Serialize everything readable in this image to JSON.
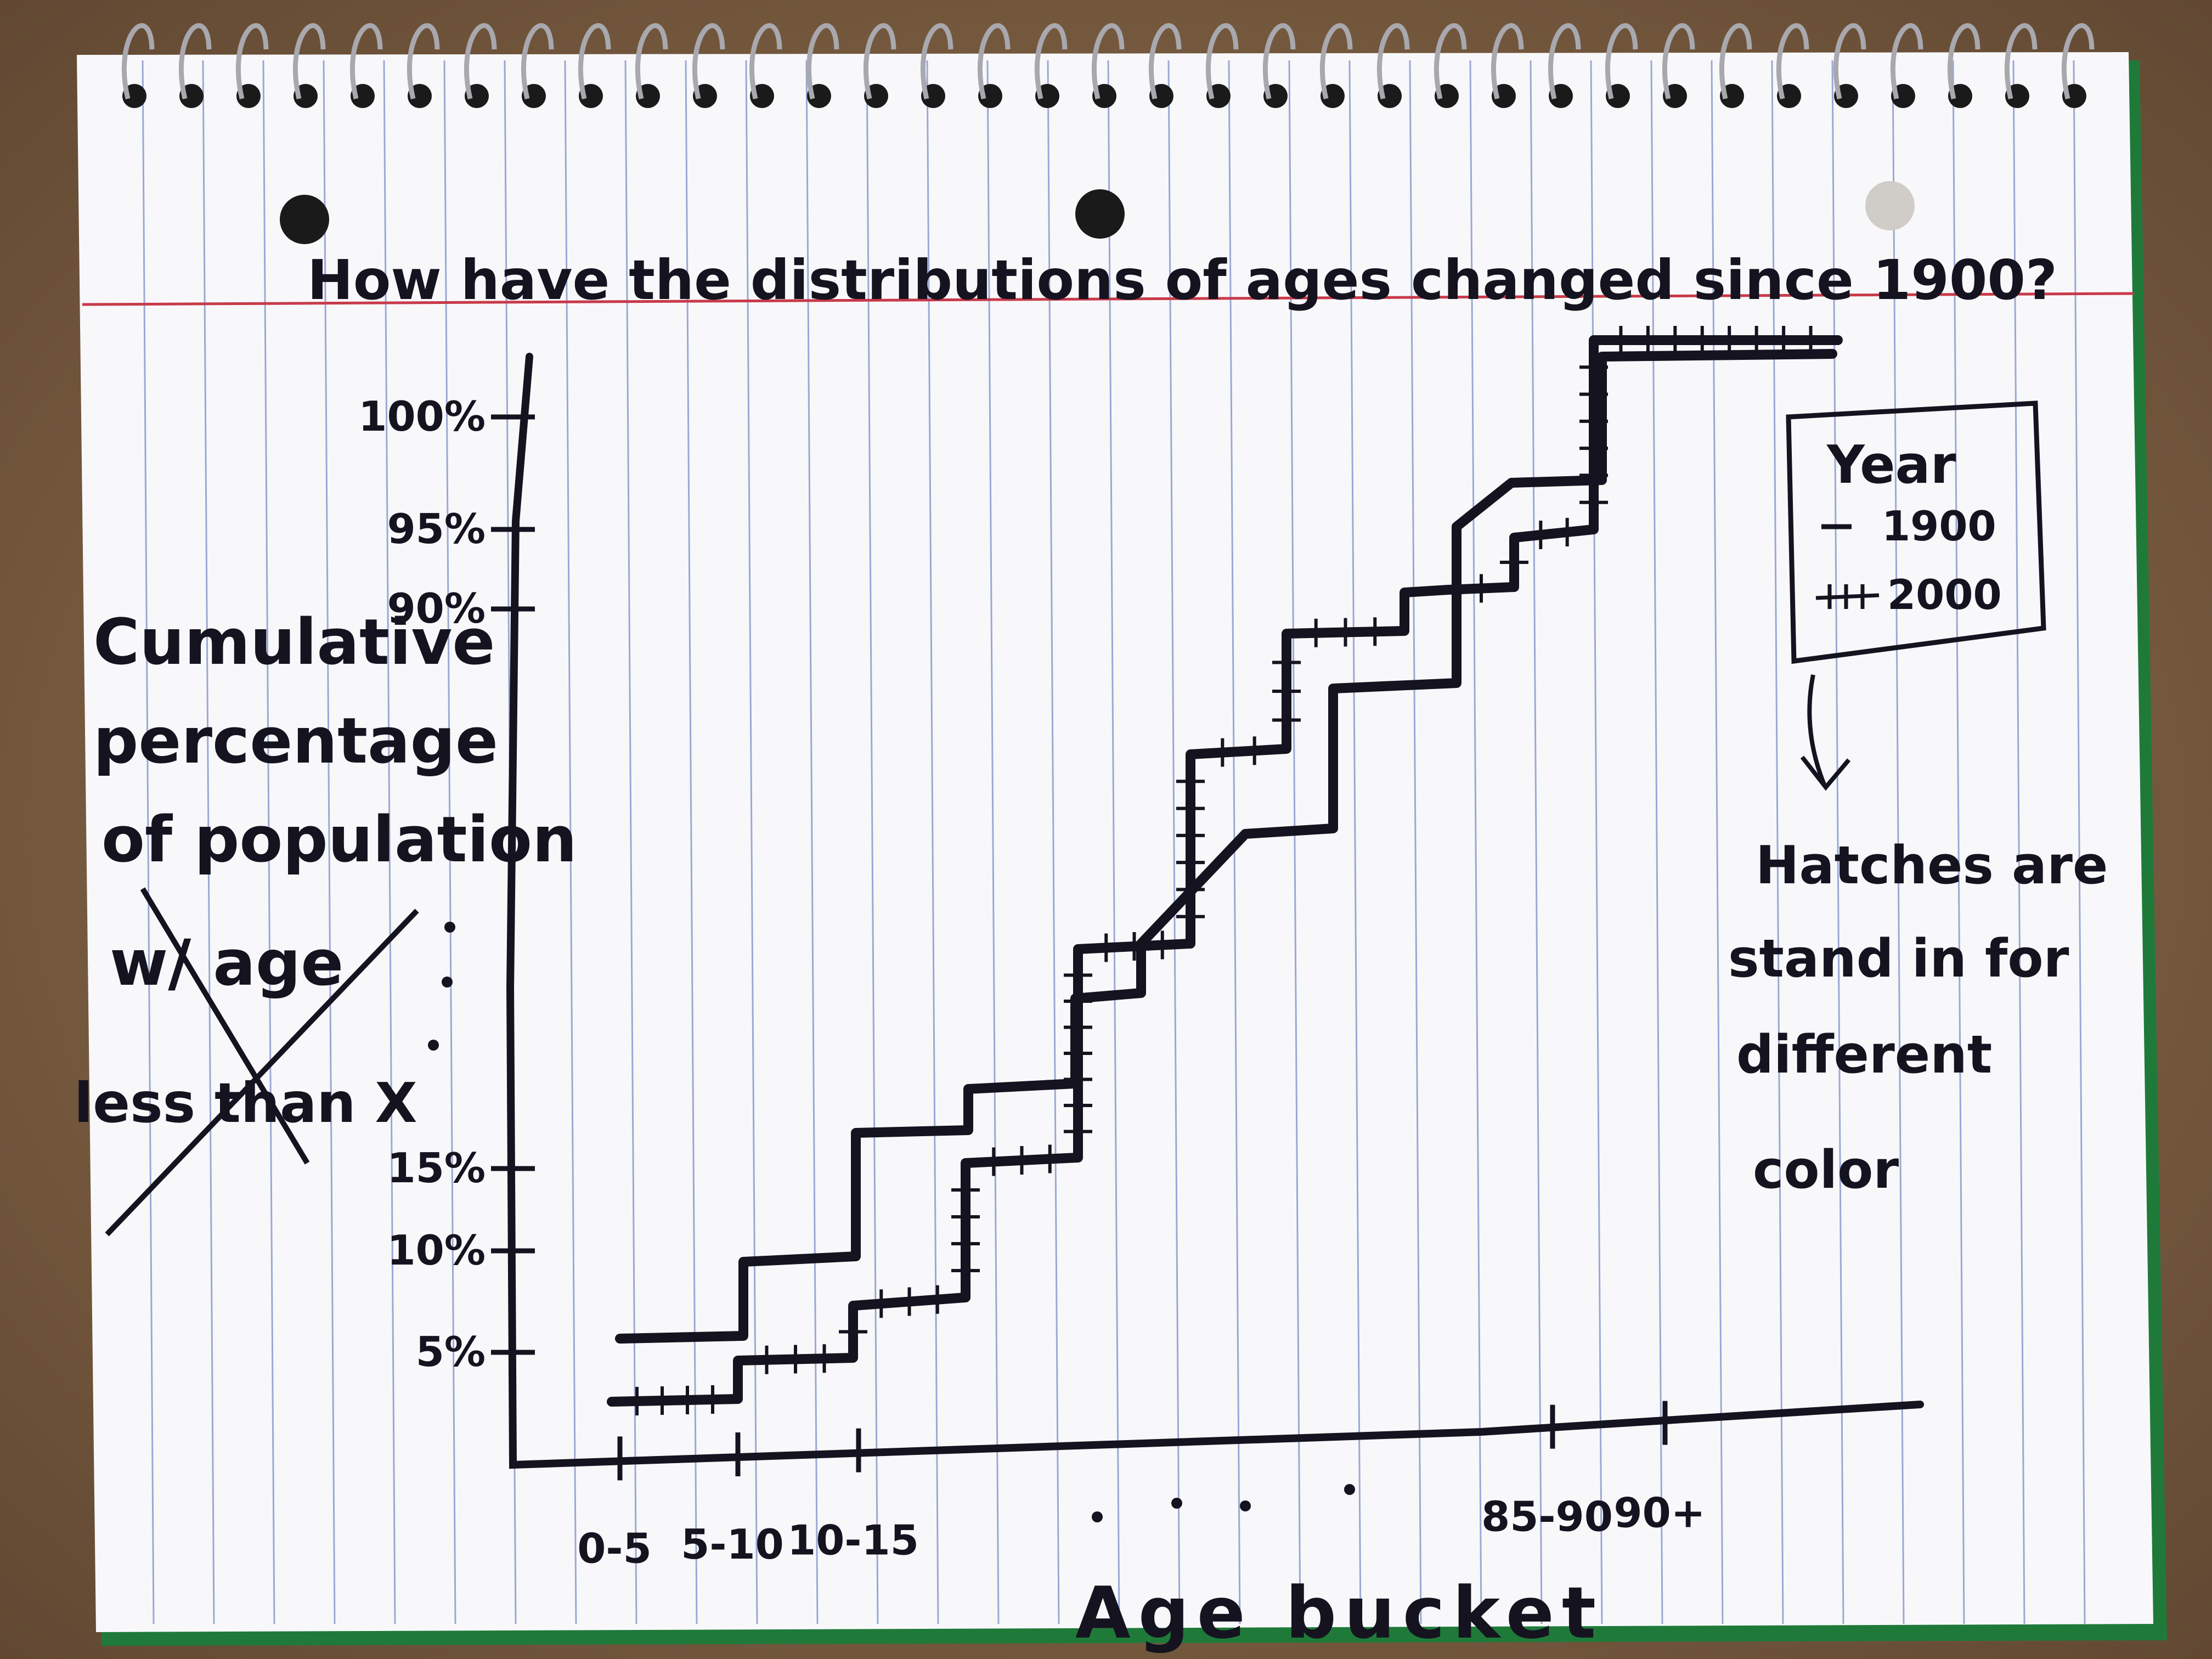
{
  "chart_data": {
    "type": "line",
    "step": true,
    "title": "How have the distributions of ages changed since 1900?",
    "xlabel": "Age bucket",
    "ylabel": {
      "lines": [
        "Cumulative",
        "percentage",
        "of population"
      ],
      "crossed_out": [
        "w/ age",
        "less than X"
      ]
    },
    "categories": [
      "0-5",
      "5-10",
      "10-15",
      "...",
      "85-90",
      "90+"
    ],
    "y_ticks": [
      "5%",
      "10%",
      "15%",
      "90%",
      "95%",
      "100%"
    ],
    "legend": {
      "title": "Year",
      "entries": [
        {
          "marker": "—",
          "label": "1900"
        },
        {
          "marker": "+++",
          "label": "2000"
        }
      ],
      "placement": "top-right"
    },
    "annotation": "Hatches are stand in for different color",
    "series": [
      {
        "name": "1900",
        "style": "solid"
      },
      {
        "name": "2000",
        "style": "hatched"
      }
    ]
  },
  "colors": {
    "ink": "#15131f",
    "paper": "#f8f8fa",
    "rule_blue": "#7d8ec8",
    "margin_red": "#c83a4a",
    "desk": "#8a6a4a"
  }
}
